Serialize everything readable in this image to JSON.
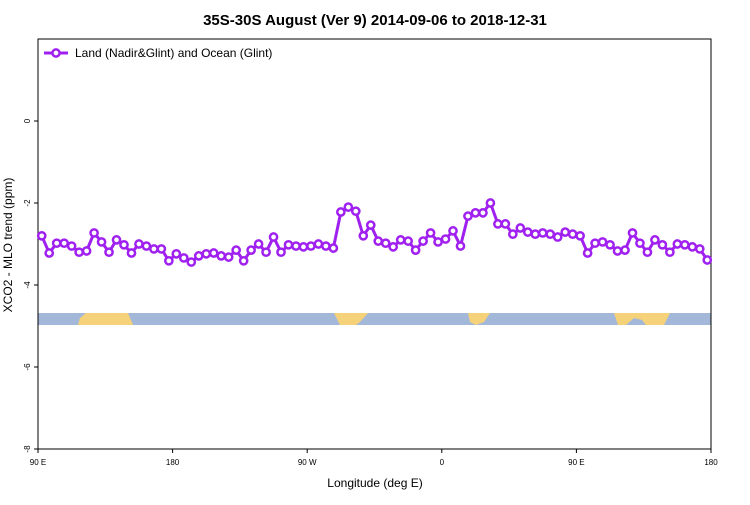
{
  "chart_data": {
    "type": "line",
    "title": "35S-30S August (Ver 9)   2014-09-06 to 2018-12-31",
    "x_label": "Longitude (deg E)",
    "y_label": "XCO2 - MLO trend (ppm)",
    "xlim": [
      90,
      540
    ],
    "xticks": [
      {
        "value": 90,
        "label": "90 E"
      },
      {
        "value": 180,
        "label": "180"
      },
      {
        "value": 270,
        "label": "90 W"
      },
      {
        "value": 360,
        "label": "0"
      },
      {
        "value": 450,
        "label": "90 E"
      },
      {
        "value": 540,
        "label": "180"
      }
    ],
    "ylim": [
      -8,
      2
    ],
    "yticks": [
      -8,
      -6,
      -4,
      -2,
      0
    ],
    "legend_position": "top-left",
    "x": [
      92.5,
      97.5,
      102.5,
      107.5,
      112.5,
      117.5,
      122.5,
      127.5,
      132.5,
      137.5,
      142.5,
      147.5,
      152.5,
      157.5,
      162.5,
      167.5,
      172.5,
      177.5,
      182.5,
      187.5,
      192.5,
      197.5,
      202.5,
      207.5,
      212.5,
      217.5,
      222.5,
      227.5,
      232.5,
      237.5,
      242.5,
      247.5,
      252.5,
      257.5,
      262.5,
      267.5,
      272.5,
      277.5,
      282.5,
      287.5,
      292.5,
      297.5,
      302.5,
      307.5,
      312.5,
      317.5,
      322.5,
      327.5,
      332.5,
      337.5,
      342.5,
      347.5,
      352.5,
      357.5,
      362.5,
      367.5,
      372.5,
      377.5,
      382.5,
      387.5,
      392.5,
      397.5,
      402.5,
      407.5,
      412.5,
      417.5,
      422.5,
      427.5,
      432.5,
      437.5,
      442.5,
      447.5,
      452.5,
      457.5,
      462.5,
      467.5,
      472.5,
      477.5,
      482.5,
      487.5,
      492.5,
      497.5,
      502.5,
      507.5,
      512.5,
      517.5,
      522.5,
      527.5,
      532.5,
      537.5
    ],
    "series": [
      {
        "name": "Land (Nadir&Glint) and Ocean (Glint)",
        "color": "#a020f0",
        "values": [
          -2.8,
          -3.22,
          -2.98,
          -2.98,
          -3.05,
          -3.2,
          -3.17,
          -2.73,
          -2.95,
          -3.2,
          -2.9,
          -3.02,
          -3.22,
          -3.0,
          -3.05,
          -3.12,
          -3.12,
          -3.41,
          -3.24,
          -3.34,
          -3.44,
          -3.29,
          -3.24,
          -3.22,
          -3.29,
          -3.32,
          -3.15,
          -3.41,
          -3.15,
          -3.0,
          -3.2,
          -2.83,
          -3.2,
          -3.02,
          -3.05,
          -3.07,
          -3.05,
          -3.0,
          -3.05,
          -3.1,
          -2.22,
          -2.1,
          -2.2,
          -2.8,
          -2.54,
          -2.93,
          -2.98,
          -3.07,
          -2.9,
          -2.93,
          -3.15,
          -2.93,
          -2.73,
          -2.95,
          -2.88,
          -2.68,
          -3.05,
          -2.32,
          -2.24,
          -2.24,
          -2.0,
          -2.51,
          -2.51,
          -2.76,
          -2.61,
          -2.71,
          -2.76,
          -2.73,
          -2.76,
          -2.83,
          -2.71,
          -2.76,
          -2.8,
          -3.22,
          -2.98,
          -2.95,
          -3.02,
          -3.17,
          -3.15,
          -2.73,
          -2.98,
          -3.2,
          -2.9,
          -3.02,
          -3.2,
          -3.0,
          -3.02,
          -3.07,
          -3.12,
          -3.39
        ]
      }
    ]
  }
}
